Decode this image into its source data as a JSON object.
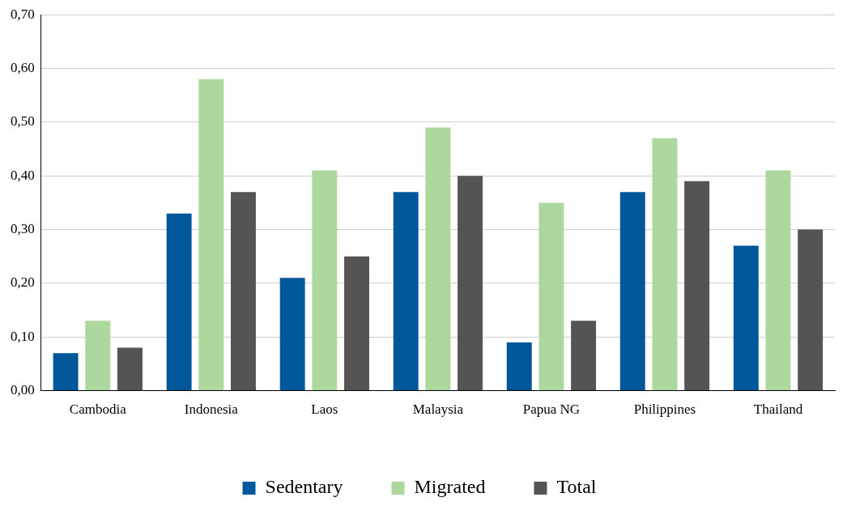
{
  "chart_data": {
    "type": "bar",
    "categories": [
      "Cambodia",
      "Indonesia",
      "Laos",
      "Malaysia",
      "Papua NG",
      "Philippines",
      "Thailand"
    ],
    "series": [
      {
        "name": "Sedentary",
        "color": "#00589a",
        "values": [
          0.07,
          0.33,
          0.21,
          0.37,
          0.09,
          0.37,
          0.27
        ]
      },
      {
        "name": "Migrated",
        "color": "#acd89e",
        "values": [
          0.13,
          0.58,
          0.41,
          0.49,
          0.35,
          0.47,
          0.41
        ]
      },
      {
        "name": "Total",
        "color": "#545454",
        "values": [
          0.08,
          0.37,
          0.25,
          0.4,
          0.13,
          0.39,
          0.3
        ]
      }
    ],
    "ylim": [
      0,
      0.7
    ],
    "yticks": [
      {
        "value": 0,
        "label": "0,00"
      },
      {
        "value": 0.1,
        "label": "0,10"
      },
      {
        "value": 0.2,
        "label": "0,20"
      },
      {
        "value": 0.3,
        "label": "0,30"
      },
      {
        "value": 0.4,
        "label": "0,40"
      },
      {
        "value": 0.5,
        "label": "0,50"
      },
      {
        "value": 0.6,
        "label": "0,60"
      },
      {
        "value": 0.7,
        "label": "0,70"
      }
    ],
    "grid": "y",
    "legend": "bottom"
  }
}
